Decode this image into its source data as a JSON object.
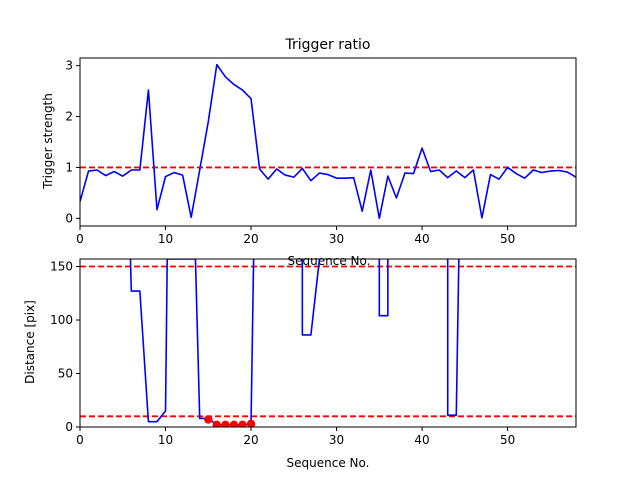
{
  "chart_data": [
    {
      "type": "line",
      "title": "Trigger ratio",
      "xlabel": "Sequence No.",
      "ylabel": "Trigger strength",
      "xlim": [
        0,
        58
      ],
      "ylim": [
        -0.15,
        3.15
      ],
      "xticks": [
        0,
        10,
        20,
        30,
        40,
        50
      ],
      "yticks": [
        0,
        1,
        2,
        3
      ],
      "threshold": {
        "value": 1.0,
        "color": "#ff0000",
        "style": "dashed"
      },
      "series": [
        {
          "color": "#0000ff",
          "x": [
            0,
            1,
            2,
            3,
            4,
            5,
            6,
            7,
            8,
            9,
            10,
            11,
            12,
            13,
            14,
            15,
            16,
            17,
            18,
            19,
            20,
            21,
            22,
            23,
            24,
            25,
            26,
            27,
            28,
            29,
            30,
            31,
            32,
            33,
            34,
            35,
            36,
            37,
            38,
            39,
            40,
            41,
            42,
            43,
            44,
            45,
            46,
            47,
            48,
            49,
            50,
            51,
            52,
            53,
            54,
            55,
            56,
            57,
            58
          ],
          "y": [
            0.33,
            0.93,
            0.95,
            0.84,
            0.92,
            0.83,
            0.95,
            0.95,
            2.52,
            0.17,
            0.82,
            0.9,
            0.85,
            0.02,
            0.95,
            1.9,
            3.02,
            2.78,
            2.63,
            2.52,
            2.35,
            0.97,
            0.77,
            0.97,
            0.85,
            0.81,
            0.98,
            0.74,
            0.89,
            0.86,
            0.79,
            0.79,
            0.8,
            0.14,
            0.95,
            0.0,
            0.83,
            0.4,
            0.89,
            0.88,
            1.38,
            0.92,
            0.95,
            0.8,
            0.93,
            0.8,
            0.95,
            0.01,
            0.86,
            0.77,
            1.0,
            0.88,
            0.79,
            0.95,
            0.9,
            0.93,
            0.94,
            0.91,
            0.81
          ]
        }
      ]
    },
    {
      "type": "line",
      "title": "",
      "xlabel": "Sequence No.",
      "ylabel": "Distance [pix]",
      "xlim": [
        0,
        58
      ],
      "ylim": [
        0,
        157
      ],
      "xticks": [
        0,
        10,
        20,
        30,
        40,
        50
      ],
      "yticks": [
        0,
        50,
        100,
        150
      ],
      "thresholds": [
        {
          "value": 150,
          "color": "#ff0000",
          "style": "dashed"
        },
        {
          "value": 10,
          "color": "#ff0000",
          "style": "dashed"
        }
      ],
      "series": [
        {
          "color": "#0000ff",
          "x": [
            5.9,
            6,
            7,
            8,
            9,
            10,
            10.2,
            13.5,
            14,
            15,
            16,
            17,
            18,
            19,
            20,
            20.3
          ],
          "y": [
            157,
            127,
            127,
            5,
            5,
            15,
            157,
            157,
            8,
            8,
            2,
            2,
            2,
            2,
            3,
            157
          ]
        },
        {
          "color": "#0000ff",
          "x": [
            26,
            26,
            27,
            28
          ],
          "y": [
            157,
            86,
            86,
            157
          ]
        },
        {
          "color": "#0000ff",
          "x": [
            35,
            35,
            36,
            36
          ],
          "y": [
            157,
            104,
            104,
            157
          ]
        },
        {
          "color": "#0000ff",
          "x": [
            43,
            43,
            44,
            44.3
          ],
          "y": [
            157,
            11,
            11,
            157
          ]
        },
        {
          "type": "scatter",
          "color": "#ff0000",
          "x": [
            15,
            16,
            17,
            18,
            19,
            20
          ],
          "y": [
            7,
            2,
            2,
            2,
            2,
            3
          ]
        }
      ]
    }
  ]
}
